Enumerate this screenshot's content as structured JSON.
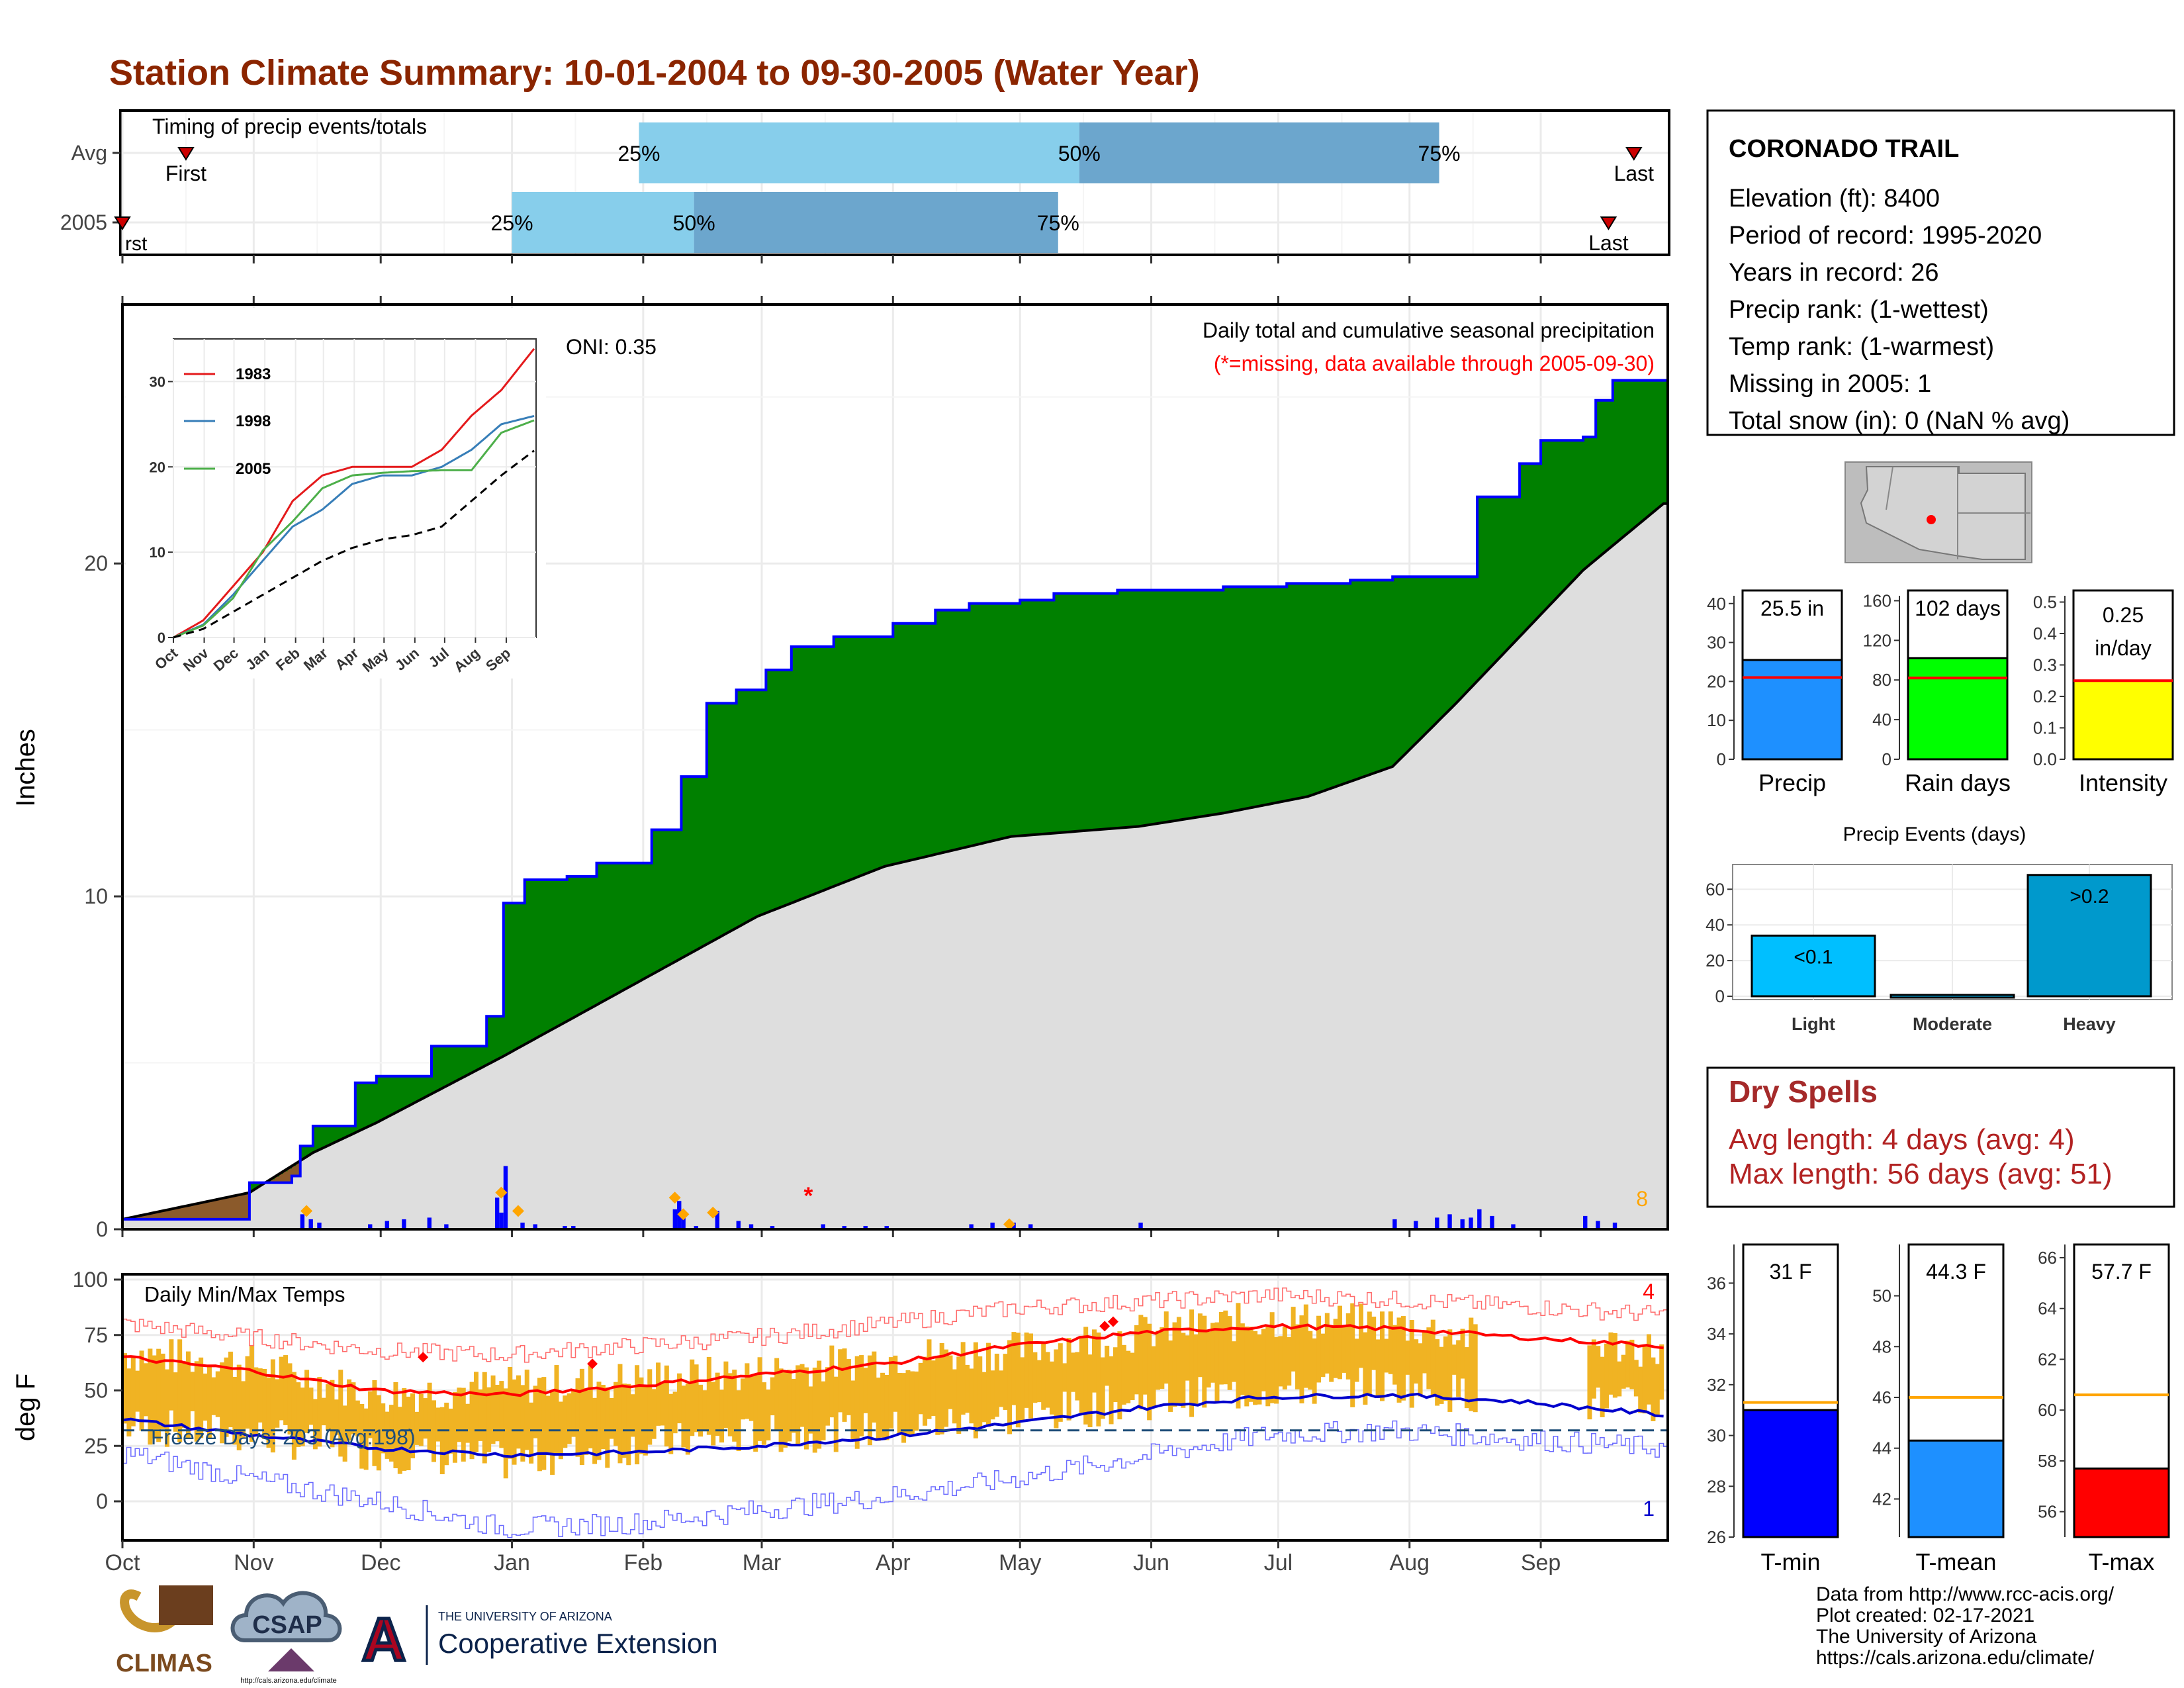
{
  "title": "Station Climate Summary: 10-01-2004 to 09-30-2005 (Water Year)",
  "months": [
    "Oct",
    "Nov",
    "Dec",
    "Jan",
    "Feb",
    "Mar",
    "Apr",
    "May",
    "Jun",
    "Jul",
    "Aug",
    "Sep"
  ],
  "colors": {
    "title": "#8B2500",
    "green": "#008000",
    "blue_line": "#0000FF",
    "gray_fill": "#DEDEDE",
    "light_blue": "#87CEEB",
    "steel_blue": "#6CA6CD",
    "orange": "#FFA500",
    "bar_gold": "#F0B323",
    "red": "#FF0000",
    "brown": "#8B5A2B"
  },
  "timing": {
    "label": "Timing of precip events/totals",
    "rows": [
      {
        "name": "Avg",
        "first_day": 15,
        "p25": 122,
        "p50": 226,
        "p75": 311,
        "last_day": 357
      },
      {
        "name": "2005",
        "first_day": 0,
        "p25": 92,
        "p50": 135,
        "p75": 221,
        "last_day": 351
      }
    ],
    "marker_first": "First",
    "marker_last": "Last",
    "first_clipped": "rst",
    "pct_labels": [
      "25%",
      "50%",
      "75%"
    ]
  },
  "precip_chart": {
    "ylabel": "Inches",
    "yticks": [
      0,
      10,
      20
    ],
    "ylim": [
      0,
      27.7
    ],
    "note": "Daily total and cumulative seasonal precipitation",
    "note_missing": "(*=missing, data available through 2005-09-30)",
    "oni": "ONI: 0.35",
    "count_label": "8",
    "cumulative_2005": {
      "x": [
        0,
        30,
        40,
        42,
        45,
        55,
        60,
        73,
        86,
        90,
        95,
        105,
        112,
        125,
        132,
        138,
        145,
        152,
        158,
        168,
        182,
        192,
        200,
        212,
        220,
        235,
        250,
        260,
        275,
        290,
        300,
        315,
        320,
        330,
        335,
        345,
        348,
        352,
        360,
        364
      ],
      "y": [
        0.3,
        1.4,
        1.6,
        2.5,
        3.1,
        4.4,
        4.6,
        5.5,
        6.4,
        9.8,
        10.5,
        10.6,
        11.0,
        12.0,
        13.6,
        15.8,
        16.2,
        16.8,
        17.5,
        17.8,
        18.2,
        18.6,
        18.8,
        18.9,
        19.1,
        19.2,
        19.2,
        19.3,
        19.4,
        19.5,
        19.6,
        19.6,
        22.0,
        23.0,
        23.7,
        23.8,
        24.9,
        25.5,
        25.5,
        25.5
      ]
    },
    "cumulative_avg": {
      "x": [
        0,
        30,
        45,
        60,
        90,
        120,
        150,
        180,
        210,
        240,
        260,
        280,
        300,
        315,
        330,
        345,
        364
      ],
      "y": [
        0.3,
        1.1,
        2.3,
        3.2,
        5.2,
        7.3,
        9.4,
        10.9,
        11.8,
        12.1,
        12.5,
        13.0,
        13.9,
        15.8,
        17.8,
        19.8,
        21.8
      ]
    },
    "daily_precip": {
      "x": [
        42,
        44,
        46,
        58,
        62,
        66,
        72,
        76,
        88,
        89,
        90,
        94,
        97,
        104,
        106,
        130,
        131,
        132,
        135,
        140,
        145,
        148,
        153,
        165,
        170,
        175,
        180,
        200,
        205,
        210,
        214,
        240,
        300,
        305,
        310,
        313,
        316,
        318,
        320,
        323,
        328,
        345,
        348,
        352
      ],
      "y": [
        0.45,
        0.3,
        0.2,
        0.15,
        0.25,
        0.3,
        0.35,
        0.15,
        0.95,
        0.5,
        1.9,
        0.2,
        0.15,
        0.1,
        0.1,
        0.6,
        0.85,
        0.35,
        0.1,
        0.55,
        0.25,
        0.15,
        0.1,
        0.15,
        0.1,
        0.1,
        0.1,
        0.15,
        0.2,
        0.2,
        0.15,
        0.2,
        0.3,
        0.25,
        0.35,
        0.45,
        0.3,
        0.35,
        0.6,
        0.4,
        0.15,
        0.4,
        0.25,
        0.2
      ]
    },
    "orange_diamonds": {
      "x": [
        43,
        89,
        93,
        130,
        132,
        139,
        209
      ],
      "y": [
        0.55,
        1.1,
        0.55,
        0.95,
        0.45,
        0.5,
        0.15
      ]
    },
    "missing_marker": {
      "x": 162,
      "y": 1.0,
      "symbol": "*"
    },
    "inset": {
      "xlabels": [
        "Oct",
        "Nov",
        "Dec",
        "Jan",
        "Feb",
        "Mar",
        "Apr",
        "May",
        "Jun",
        "Jul",
        "Aug",
        "Sep"
      ],
      "yticks": [
        0,
        10,
        20,
        30
      ],
      "ylim": [
        0,
        35
      ],
      "series": [
        {
          "name": "1983",
          "color": "#E41A1C",
          "x": [
            0,
            30,
            60,
            90,
            120,
            150,
            180,
            210,
            240,
            270,
            300,
            330,
            364
          ],
          "y": [
            0,
            2,
            6,
            10,
            16,
            19,
            20,
            20,
            20,
            22,
            26,
            29,
            34
          ]
        },
        {
          "name": "1998",
          "color": "#377EB8",
          "x": [
            0,
            30,
            60,
            90,
            120,
            150,
            180,
            210,
            240,
            270,
            300,
            330,
            364
          ],
          "y": [
            0,
            1.5,
            5,
            9,
            13,
            15,
            18,
            19,
            19,
            20,
            22,
            25,
            26
          ]
        },
        {
          "name": "2005",
          "color": "#4DAF4A",
          "x": [
            0,
            30,
            60,
            90,
            120,
            150,
            180,
            210,
            240,
            270,
            300,
            330,
            364
          ],
          "y": [
            0,
            1.4,
            4.6,
            10.2,
            13.6,
            17.5,
            19.0,
            19.3,
            19.5,
            19.6,
            19.6,
            24.0,
            25.5
          ]
        },
        {
          "name": "avg",
          "color": "#000000",
          "x": [
            0,
            30,
            60,
            90,
            120,
            150,
            180,
            210,
            240,
            270,
            300,
            330,
            364
          ],
          "y": [
            0,
            1,
            3,
            5,
            7,
            9,
            10.5,
            11.5,
            12,
            13,
            16,
            19,
            22
          ]
        }
      ]
    }
  },
  "temp_chart": {
    "label": "Daily Min/Max Temps",
    "ylabel": "deg F",
    "yticks": [
      0,
      25,
      50,
      75,
      100
    ],
    "ylim": [
      -20,
      100
    ],
    "freeze_text": "Freeze Days: 203 (Avg:198)",
    "freeze_line": 32,
    "top_count": "4",
    "bottom_count": "1",
    "avg_max": {
      "x": [
        0,
        30,
        60,
        90,
        120,
        150,
        180,
        210,
        240,
        270,
        300,
        330,
        364
      ],
      "y": [
        65,
        59,
        50,
        48,
        52,
        57,
        62,
        70,
        76,
        79,
        78,
        74,
        70
      ]
    },
    "avg_min": {
      "x": [
        0,
        30,
        60,
        90,
        120,
        150,
        180,
        210,
        240,
        270,
        300,
        330,
        364
      ],
      "y": [
        37,
        30,
        24,
        21,
        22,
        25,
        29,
        35,
        42,
        47,
        48,
        45,
        39
      ]
    },
    "rec_max": {
      "x": [
        0,
        30,
        60,
        90,
        120,
        150,
        180,
        210,
        240,
        270,
        300,
        330,
        364
      ],
      "y": [
        80,
        74,
        68,
        66,
        70,
        74,
        80,
        87,
        90,
        93,
        91,
        88,
        84
      ]
    },
    "rec_min": {
      "x": [
        0,
        30,
        60,
        90,
        120,
        150,
        180,
        210,
        240,
        270,
        300,
        330,
        364
      ],
      "y": [
        22,
        10,
        0,
        -12,
        -10,
        -4,
        2,
        10,
        20,
        30,
        32,
        28,
        24
      ]
    },
    "obs_max": {
      "x": [
        0,
        30,
        60,
        90,
        120,
        150,
        180,
        210,
        240,
        270,
        300,
        319,
        320,
        345,
        364
      ],
      "y": [
        67,
        62,
        48,
        52,
        55,
        58,
        65,
        68,
        76,
        82,
        80,
        74,
        null,
        72,
        68
      ]
    },
    "obs_min": {
      "x": [
        0,
        30,
        60,
        90,
        120,
        150,
        180,
        210,
        240,
        270,
        300,
        319,
        320,
        345,
        364
      ],
      "y": [
        34,
        30,
        22,
        18,
        25,
        30,
        32,
        38,
        45,
        50,
        52,
        48,
        null,
        44,
        42
      ]
    },
    "red_markers": {
      "x": [
        71,
        111,
        232,
        234
      ],
      "y": [
        65,
        62,
        79,
        81
      ]
    }
  },
  "info": {
    "station": "CORONADO TRAIL",
    "lines": [
      "Elevation (ft): 8400",
      "Period of record: 1995-2020",
      "Years in record: 26",
      "Precip rank:  (1-wettest)",
      "Temp rank:  (1-warmest)",
      "Missing in 2005: 1",
      "Total snow (in): 0 (NaN % avg)"
    ]
  },
  "summary_bars": [
    {
      "name": "Precip",
      "value": 25.5,
      "label": "25.5 in",
      "avg": 21,
      "ylim": [
        0,
        42
      ],
      "yticks": [
        0,
        10,
        20,
        30,
        40
      ],
      "color": "#1E90FF"
    },
    {
      "name": "Rain days",
      "value": 102,
      "label": "102 days",
      "avg": 82,
      "ylim": [
        0,
        165
      ],
      "yticks": [
        0,
        40,
        80,
        120,
        160
      ],
      "color": "#00FF00"
    },
    {
      "name": "Intensity",
      "value": 0.25,
      "label": "0.25 in/day",
      "avg": 0.25,
      "ylim": [
        0,
        0.52
      ],
      "yticks": [
        0.0,
        0.1,
        0.2,
        0.3,
        0.4,
        0.5
      ],
      "color": "#FFFF00"
    }
  ],
  "events": {
    "title": "Precip Events (days)",
    "categories": [
      "Light",
      "Moderate",
      "Heavy"
    ],
    "values": [
      34,
      0,
      68
    ],
    "labels": [
      "<0.1",
      "",
      ">0.2"
    ],
    "yticks": [
      0,
      20,
      40,
      60
    ],
    "ylim": [
      0,
      72
    ],
    "colors": [
      "#00BFFF",
      "#00BFFF",
      "#0099CC"
    ]
  },
  "dry_spells": {
    "title": "Dry Spells",
    "line1": "Avg length: 4 days (avg: 4)",
    "line2": "Max length: 56 days (avg: 51)"
  },
  "temp_bars": [
    {
      "name": "T-min",
      "value": 31,
      "label": "31 F",
      "avg": 31.3,
      "ylim": [
        26,
        37
      ],
      "yticks": [
        26,
        28,
        30,
        32,
        34,
        36
      ],
      "color": "#0000FF"
    },
    {
      "name": "T-mean",
      "value": 44.3,
      "label": "44.3 F",
      "avg": 46,
      "ylim": [
        40.5,
        51.5
      ],
      "yticks": [
        42,
        44,
        46,
        48,
        50
      ],
      "color": "#1E90FF"
    },
    {
      "name": "T-max",
      "value": 57.7,
      "label": "57.7 F",
      "avg": 60.6,
      "ylim": [
        55,
        66
      ],
      "yticks": [
        56,
        58,
        60,
        62,
        64,
        66
      ],
      "color": "#FF0000"
    }
  ],
  "footer": {
    "lines": [
      "Data from http://www.rcc-acis.org/",
      "Plot created: 02-17-2021",
      "The University of Arizona",
      "https://cals.arizona.edu/climate/"
    ],
    "climas": "CLIMAS",
    "csap": "CSAP",
    "csap_url": "http://cals.arizona.edu/climate",
    "ua_small": "THE UNIVERSITY OF ARIZONA",
    "ua_big": "Cooperative Extension"
  }
}
